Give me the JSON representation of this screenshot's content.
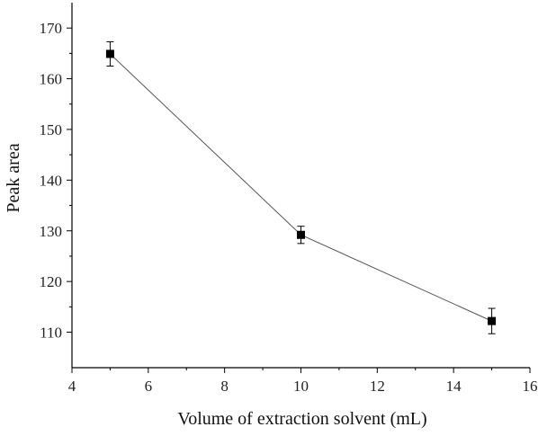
{
  "chart_data": {
    "type": "line",
    "title": "",
    "xlabel": "Volume of extraction solvent (mL)",
    "ylabel": "Peak area",
    "xlim": [
      4,
      16
    ],
    "ylim": [
      103,
      175
    ],
    "x_ticks": [
      4,
      6,
      8,
      10,
      12,
      14,
      16
    ],
    "y_ticks": [
      110,
      120,
      130,
      140,
      150,
      160,
      170
    ],
    "grid": false,
    "legend": "none",
    "series": [
      {
        "x": [
          5,
          10,
          15
        ],
        "values": [
          164.9,
          129.2,
          112.2
        ],
        "error": [
          2.4,
          1.7,
          2.5
        ],
        "color": "#000000",
        "line_color": "#555555",
        "marker": "square"
      }
    ]
  }
}
